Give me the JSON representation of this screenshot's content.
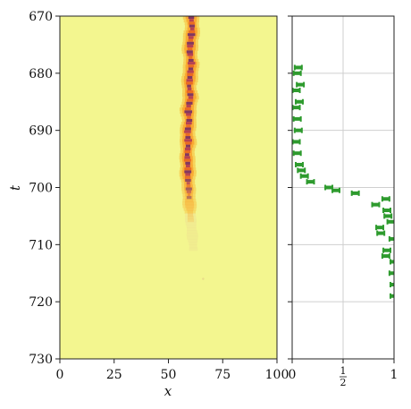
{
  "chart_data": [
    {
      "type": "heatmap",
      "title": "",
      "xlabel": "x",
      "ylabel": "t",
      "xlim": [
        0,
        100
      ],
      "ylim": [
        730,
        670
      ],
      "x_ticks": [
        "0",
        "25",
        "50",
        "75",
        "100"
      ],
      "y_ticks": [
        "670",
        "680",
        "690",
        "700",
        "710",
        "720",
        "730"
      ],
      "background_color": "#f3f68f",
      "colormap": [
        "#f3f68f",
        "#f6d25a",
        "#f9a730",
        "#e4571e",
        "#a0205d",
        "#5a1270"
      ],
      "band_center_x": [
        [
          670,
          60.5
        ],
        [
          672,
          61.0
        ],
        [
          674,
          60.2
        ],
        [
          676,
          59.8
        ],
        [
          678,
          60.6
        ],
        [
          680,
          60.0
        ],
        [
          682,
          59.5
        ],
        [
          684,
          60.3
        ],
        [
          686,
          59.0
        ],
        [
          688,
          59.6
        ],
        [
          690,
          58.8
        ],
        [
          692,
          59.2
        ],
        [
          694,
          58.6
        ],
        [
          696,
          59.0
        ],
        [
          698,
          58.9
        ],
        [
          700,
          59.4
        ],
        [
          702,
          59.6
        ],
        [
          704,
          60.0
        ],
        [
          706,
          60.4
        ],
        [
          708,
          61.0
        ],
        [
          710,
          61.4
        ],
        [
          711,
          61.6
        ]
      ]
    },
    {
      "type": "scatter",
      "title": "",
      "xlabel": "",
      "ylabel": "",
      "xlim": [
        0,
        1
      ],
      "ylim": [
        730,
        670
      ],
      "x_ticks": [
        "0",
        "1/2",
        "1"
      ],
      "grid": true,
      "color": "#2e9b2e",
      "points": [
        {
          "t": 679,
          "x": 0.06
        },
        {
          "t": 680,
          "x": 0.05
        },
        {
          "t": 682,
          "x": 0.08
        },
        {
          "t": 683,
          "x": 0.04
        },
        {
          "t": 685,
          "x": 0.07
        },
        {
          "t": 686,
          "x": 0.04
        },
        {
          "t": 688,
          "x": 0.05
        },
        {
          "t": 690,
          "x": 0.06
        },
        {
          "t": 692,
          "x": 0.04
        },
        {
          "t": 694,
          "x": 0.05
        },
        {
          "t": 696,
          "x": 0.07
        },
        {
          "t": 697,
          "x": 0.09
        },
        {
          "t": 698,
          "x": 0.12
        },
        {
          "t": 699,
          "x": 0.18
        },
        {
          "t": 700,
          "x": 0.36
        },
        {
          "t": 700.5,
          "x": 0.43
        },
        {
          "t": 701,
          "x": 0.62
        },
        {
          "t": 702,
          "x": 0.92
        },
        {
          "t": 703,
          "x": 0.82
        },
        {
          "t": 704,
          "x": 0.93
        },
        {
          "t": 705,
          "x": 0.94
        },
        {
          "t": 706,
          "x": 0.97
        },
        {
          "t": 707,
          "x": 0.86
        },
        {
          "t": 708,
          "x": 0.87
        },
        {
          "t": 709,
          "x": 0.99
        },
        {
          "t": 711,
          "x": 0.93
        },
        {
          "t": 712,
          "x": 0.92
        },
        {
          "t": 713,
          "x": 1.0
        },
        {
          "t": 715,
          "x": 0.99
        },
        {
          "t": 717,
          "x": 1.0
        },
        {
          "t": 719,
          "x": 1.0
        }
      ]
    }
  ]
}
